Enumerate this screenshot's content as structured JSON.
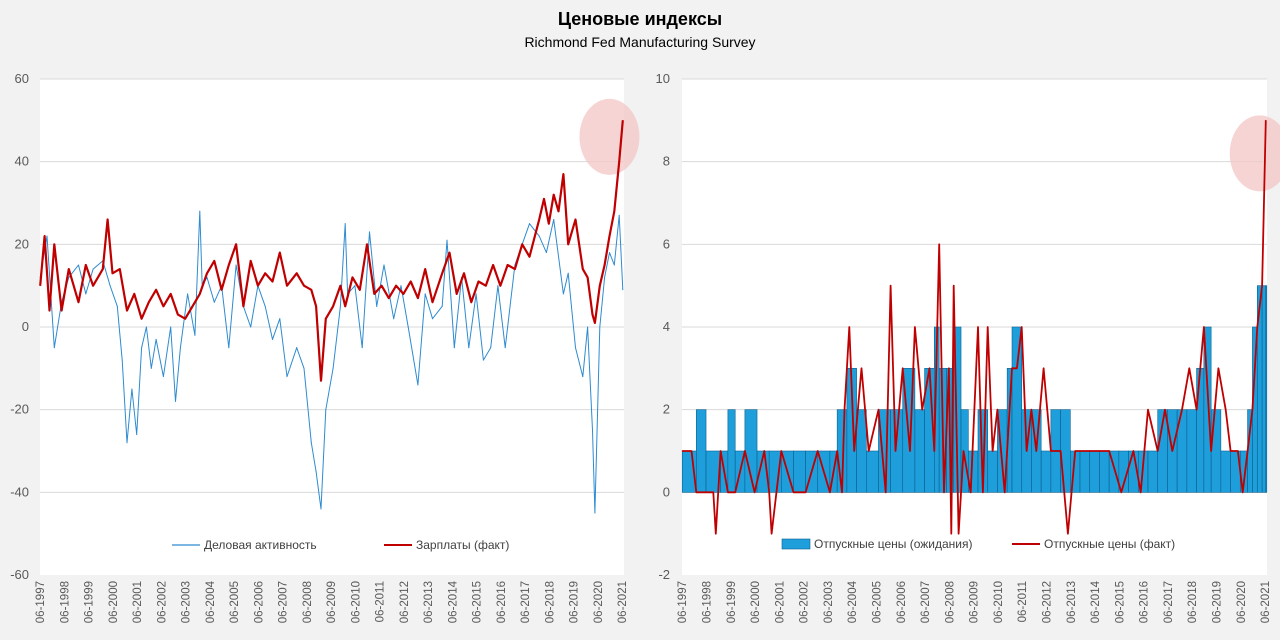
{
  "title": "Ценовые индексы",
  "subtitle": "Richmond Fed Manufacturing Survey",
  "colors": {
    "blue": "#2e8bd0",
    "red": "#c00000",
    "bar_blue": "#1e9fdb",
    "highlight": "#f4c6c6",
    "grid": "#d9d9d9"
  },
  "chart_data": [
    {
      "type": "line",
      "ylim": [
        -60,
        60
      ],
      "yticks": [
        "-60",
        "-40",
        "-20",
        "0",
        "20",
        "40",
        "60"
      ],
      "xlim": [
        1997.41,
        2021.5
      ],
      "categories": [
        "06-1997",
        "06-1998",
        "06-1999",
        "06-2000",
        "06-2001",
        "06-2002",
        "06-2003",
        "06-2004",
        "06-2005",
        "06-2006",
        "06-2007",
        "06-2008",
        "06-2009",
        "06-2010",
        "06-2011",
        "06-2012",
        "06-2013",
        "06-2014",
        "06-2015",
        "06-2016",
        "06-2017",
        "06-2018",
        "06-2019",
        "06-2020",
        "06-2021"
      ],
      "highlight": {
        "x": 2020.9,
        "y": 46
      },
      "series": [
        {
          "name": "Деловая активность",
          "color": "#2e8bd0",
          "style": "thin-line",
          "x": [
            1997.42,
            1997.7,
            1998.0,
            1998.3,
            1998.6,
            1999.0,
            1999.3,
            1999.6,
            2000.0,
            2000.3,
            2000.6,
            2000.8,
            2001.0,
            2001.2,
            2001.4,
            2001.6,
            2001.8,
            2002.0,
            2002.2,
            2002.5,
            2002.8,
            2003.0,
            2003.2,
            2003.5,
            2003.8,
            2004.0,
            2004.1,
            2004.3,
            2004.6,
            2004.9,
            2005.2,
            2005.5,
            2005.8,
            2006.1,
            2006.4,
            2006.7,
            2007.0,
            2007.3,
            2007.6,
            2008.0,
            2008.3,
            2008.6,
            2008.8,
            2009.0,
            2009.2,
            2009.5,
            2009.8,
            2010.0,
            2010.1,
            2010.4,
            2010.7,
            2011.0,
            2011.3,
            2011.6,
            2012.0,
            2012.3,
            2012.6,
            2013.0,
            2013.3,
            2013.6,
            2014.0,
            2014.2,
            2014.5,
            2014.8,
            2015.1,
            2015.4,
            2015.7,
            2016.0,
            2016.3,
            2016.6,
            2017.0,
            2017.3,
            2017.6,
            2018.0,
            2018.3,
            2018.6,
            2019.0,
            2019.2,
            2019.5,
            2019.8,
            2020.0,
            2020.2,
            2020.3,
            2020.5,
            2020.7,
            2020.9,
            2021.1,
            2021.3,
            2021.45
          ],
          "values": [
            12,
            22,
            -5,
            6,
            12,
            15,
            8,
            14,
            16,
            10,
            5,
            -8,
            -28,
            -15,
            -26,
            -5,
            0,
            -10,
            -3,
            -12,
            0,
            -18,
            -5,
            8,
            -2,
            28,
            10,
            12,
            6,
            10,
            -5,
            15,
            5,
            0,
            10,
            5,
            -3,
            2,
            -12,
            -5,
            -10,
            -28,
            -35,
            -44,
            -20,
            -10,
            5,
            25,
            8,
            10,
            -5,
            23,
            5,
            15,
            2,
            10,
            0,
            -14,
            8,
            2,
            5,
            21,
            -5,
            12,
            -5,
            8,
            -8,
            -5,
            10,
            -5,
            15,
            20,
            25,
            22,
            18,
            26,
            8,
            13,
            -5,
            -12,
            0,
            -25,
            -45,
            0,
            12,
            18,
            15,
            27,
            9
          ]
        },
        {
          "name": "Зарплаты (факт)",
          "color": "#c00000",
          "style": "thick-line",
          "x": [
            1997.42,
            1997.6,
            1997.8,
            1998.0,
            1998.3,
            1998.6,
            1999.0,
            1999.3,
            1999.6,
            2000.0,
            2000.2,
            2000.4,
            2000.7,
            2001.0,
            2001.3,
            2001.6,
            2001.9,
            2002.2,
            2002.5,
            2002.8,
            2003.1,
            2003.4,
            2003.7,
            2004.0,
            2004.3,
            2004.6,
            2004.9,
            2005.2,
            2005.5,
            2005.8,
            2006.1,
            2006.4,
            2006.7,
            2007.0,
            2007.3,
            2007.6,
            2008.0,
            2008.3,
            2008.6,
            2008.8,
            2009.0,
            2009.2,
            2009.5,
            2009.8,
            2010.0,
            2010.3,
            2010.6,
            2010.9,
            2011.2,
            2011.5,
            2011.8,
            2012.1,
            2012.4,
            2012.7,
            2013.0,
            2013.3,
            2013.6,
            2014.0,
            2014.3,
            2014.6,
            2014.9,
            2015.2,
            2015.5,
            2015.8,
            2016.1,
            2016.4,
            2016.7,
            2017.0,
            2017.3,
            2017.6,
            2018.0,
            2018.2,
            2018.4,
            2018.6,
            2018.8,
            2019.0,
            2019.2,
            2019.5,
            2019.8,
            2020.0,
            2020.2,
            2020.3,
            2020.5,
            2020.7,
            2020.9,
            2021.1,
            2021.3,
            2021.45
          ],
          "values": [
            10,
            22,
            4,
            20,
            4,
            14,
            6,
            15,
            10,
            14,
            26,
            13,
            14,
            4,
            8,
            2,
            6,
            9,
            5,
            8,
            3,
            2,
            5,
            8,
            13,
            16,
            9,
            15,
            20,
            5,
            16,
            10,
            13,
            11,
            18,
            10,
            13,
            10,
            9,
            5,
            -13,
            2,
            5,
            10,
            5,
            12,
            9,
            20,
            8,
            10,
            7,
            10,
            8,
            11,
            7,
            14,
            6,
            13,
            18,
            8,
            13,
            6,
            11,
            10,
            15,
            10,
            15,
            14,
            20,
            17,
            26,
            31,
            25,
            32,
            28,
            37,
            20,
            26,
            14,
            12,
            3,
            1,
            10,
            15,
            22,
            28,
            40,
            50
          ]
        }
      ],
      "legend": [
        "Деловая активность",
        "Зарплаты (факт)"
      ]
    },
    {
      "type": "bar+line",
      "ylim": [
        -2,
        10
      ],
      "yticks": [
        "-2",
        "0",
        "2",
        "4",
        "6",
        "8",
        "10"
      ],
      "xlim": [
        1997.41,
        2021.5
      ],
      "categories": [
        "06-1997",
        "06-1998",
        "06-1999",
        "06-2000",
        "06-2001",
        "06-2002",
        "06-2003",
        "06-2004",
        "06-2005",
        "06-2006",
        "06-2007",
        "06-2008",
        "06-2009",
        "06-2010",
        "06-2011",
        "06-2012",
        "06-2013",
        "06-2014",
        "06-2015",
        "06-2016",
        "06-2017",
        "06-2018",
        "06-2019",
        "06-2020",
        "06-2021"
      ],
      "highlight": {
        "x": 2021.2,
        "y": 8.2
      },
      "series": [
        {
          "name": "Отпускные цены (ожидания)",
          "color": "#1e9fdb",
          "style": "bars",
          "x": [
            1997.42,
            1998.0,
            1998.4,
            1999.0,
            1999.3,
            1999.6,
            2000.0,
            2000.5,
            2001.0,
            2001.5,
            2002.0,
            2002.5,
            2003.0,
            2003.5,
            2003.8,
            2004.2,
            2004.6,
            2005.0,
            2005.5,
            2006.0,
            2006.5,
            2007.0,
            2007.4,
            2007.8,
            2008.0,
            2008.3,
            2008.6,
            2008.9,
            2009.2,
            2009.6,
            2010.0,
            2010.4,
            2010.8,
            2011.0,
            2011.4,
            2011.8,
            2012.2,
            2012.6,
            2013.0,
            2013.4,
            2013.8,
            2014.2,
            2014.6,
            2015.0,
            2015.4,
            2015.8,
            2016.2,
            2016.6,
            2017.0,
            2017.4,
            2017.8,
            2018.2,
            2018.6,
            2018.9,
            2019.2,
            2019.6,
            2020.0,
            2020.4,
            2020.7,
            2020.9,
            2021.1,
            2021.3,
            2021.45
          ],
          "values": [
            1,
            2,
            1,
            1,
            2,
            1,
            2,
            1,
            1,
            1,
            1,
            1,
            1,
            1,
            2,
            3,
            2,
            1,
            2,
            2,
            3,
            2,
            3,
            4,
            3,
            3,
            4,
            2,
            1,
            2,
            1,
            2,
            3,
            4,
            2,
            2,
            1,
            2,
            2,
            1,
            1,
            1,
            1,
            1,
            1,
            1,
            1,
            1,
            2,
            2,
            2,
            2,
            3,
            4,
            2,
            1,
            1,
            1,
            2,
            4,
            5,
            5,
            5
          ]
        },
        {
          "name": "Отпускные цены (факт)",
          "color": "#c00000",
          "style": "line",
          "x": [
            1997.42,
            1997.8,
            1998.0,
            1998.3,
            1998.7,
            1998.8,
            1999.0,
            1999.3,
            1999.6,
            2000.0,
            2000.4,
            2000.8,
            2001.0,
            2001.1,
            2001.5,
            2002.0,
            2002.5,
            2003.0,
            2003.5,
            2003.8,
            2004.0,
            2004.1,
            2004.3,
            2004.5,
            2004.8,
            2005.1,
            2005.5,
            2005.8,
            2006.0,
            2006.2,
            2006.5,
            2006.8,
            2007.0,
            2007.3,
            2007.6,
            2007.8,
            2008.0,
            2008.2,
            2008.4,
            2008.5,
            2008.6,
            2008.8,
            2009.0,
            2009.3,
            2009.6,
            2009.8,
            2010.0,
            2010.2,
            2010.4,
            2010.7,
            2011.0,
            2011.2,
            2011.4,
            2011.6,
            2011.8,
            2012.0,
            2012.3,
            2012.6,
            2013.0,
            2013.3,
            2013.6,
            2014.0,
            2014.5,
            2015.0,
            2015.5,
            2016.0,
            2016.3,
            2016.6,
            2017.0,
            2017.3,
            2017.6,
            2018.0,
            2018.3,
            2018.6,
            2018.9,
            2019.2,
            2019.5,
            2019.8,
            2020.0,
            2020.3,
            2020.5,
            2020.7,
            2020.9,
            2021.1,
            2021.3,
            2021.45
          ],
          "values": [
            1,
            1,
            0,
            0,
            0,
            -1,
            1,
            0,
            0,
            1,
            0,
            1,
            0,
            -1,
            1,
            0,
            0,
            1,
            0,
            1,
            0,
            2,
            4,
            1,
            3,
            1,
            2,
            0,
            5,
            1,
            3,
            1,
            4,
            2,
            3,
            1,
            6,
            0,
            3,
            -1,
            5,
            -1,
            1,
            0,
            4,
            0,
            4,
            1,
            2,
            0,
            3,
            3,
            4,
            1,
            2,
            1,
            3,
            1,
            1,
            -1,
            1,
            1,
            1,
            1,
            0,
            1,
            0,
            2,
            1,
            2,
            1,
            2,
            3,
            2,
            4,
            1,
            3,
            2,
            1,
            1,
            0,
            1,
            2,
            4,
            5,
            9
          ]
        }
      ],
      "legend": [
        "Отпускные цены (ожидания)",
        "Отпускные цены (факт)"
      ]
    }
  ]
}
